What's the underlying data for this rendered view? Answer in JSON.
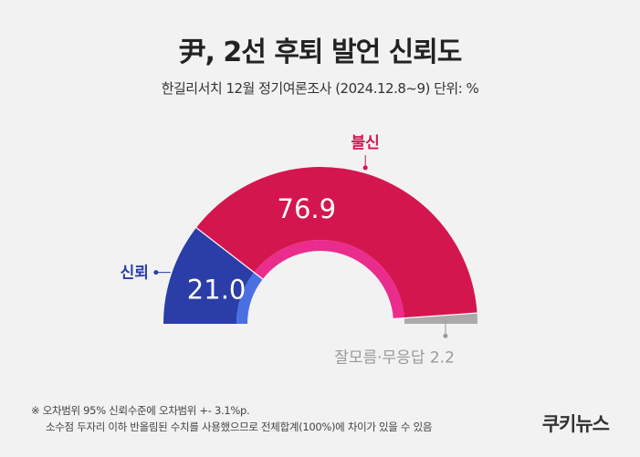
{
  "title": "尹, 2선 후퇴 발언 신뢰도",
  "subtitle": "한길리서치 12월 정기여론조사 (2024.12.8~9) 단위: %",
  "footnote": {
    "line1": "※ 오차범위 95% 신뢰수준에 오차범위 +- 3.1%p.",
    "line2": "소수점 두자리 이하 반올림된 수치를 사용했으므로 전체합계(100%)에 차이가 있을 수 있음"
  },
  "logo": "쿠키뉴스",
  "chart_data": {
    "type": "pie",
    "subtype": "semi-donut",
    "unit": "%",
    "categories": [
      "신뢰",
      "불신",
      "잘모름·무응답"
    ],
    "values": [
      21.0,
      76.9,
      2.2
    ],
    "labels": {
      "trust": "신뢰",
      "distrust": "불신",
      "unknown": "잘모름·무응답 2.2"
    },
    "value_labels": {
      "trust": "21.0",
      "distrust": "76.9"
    },
    "colors": {
      "trust": "#2b3ea8",
      "trust_inner": "#4a6fe0",
      "distrust": "#d4164f",
      "distrust_inner": "#ea2d8c",
      "unknown": "#aaaaaa",
      "trust_label": "#2b3ea8",
      "distrust_label": "#d4164f",
      "unknown_label": "#999999"
    }
  }
}
